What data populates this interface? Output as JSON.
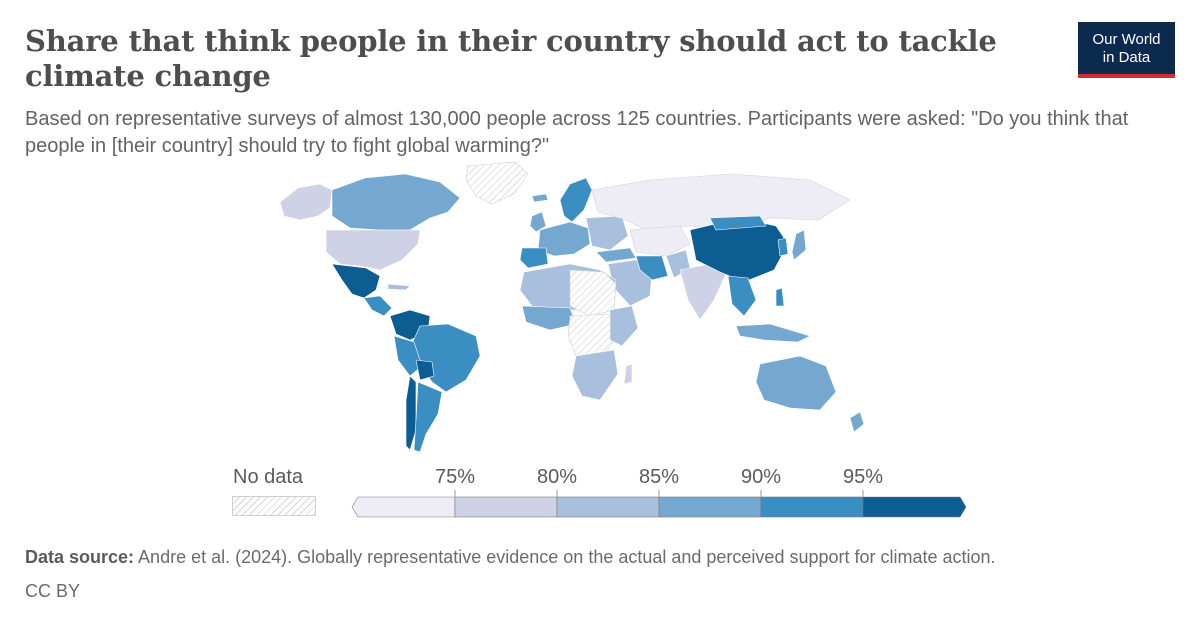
{
  "header": {
    "title": "Share that think people in their country should act to tackle climate change",
    "subtitle": "Based on representative surveys of almost 130,000 people across 125 countries. Participants were asked: \"Do you think that people in [their country] should try to fight global warming?\"",
    "logo_line1": "Our World",
    "logo_line2": "in Data"
  },
  "colors": {
    "bin0": "#eeedf5",
    "bin1": "#cfd1e6",
    "bin2": "#a8bfdd",
    "bin3": "#75a8d0",
    "bin4": "#3a8ec2",
    "bin5": "#0c5e92",
    "nodata": "#d6d6d6",
    "brand": "#0c2a4e",
    "brand_accent": "#d22d31"
  },
  "legend": {
    "no_data_label": "No data",
    "ticks": [
      "75%",
      "80%",
      "85%",
      "90%",
      "95%"
    ]
  },
  "footer": {
    "source_label": "Data source:",
    "source_text": " Andre et al. (2024). Globally representative evidence on the actual and perceived support for climate action.",
    "license": "CC BY"
  }
}
